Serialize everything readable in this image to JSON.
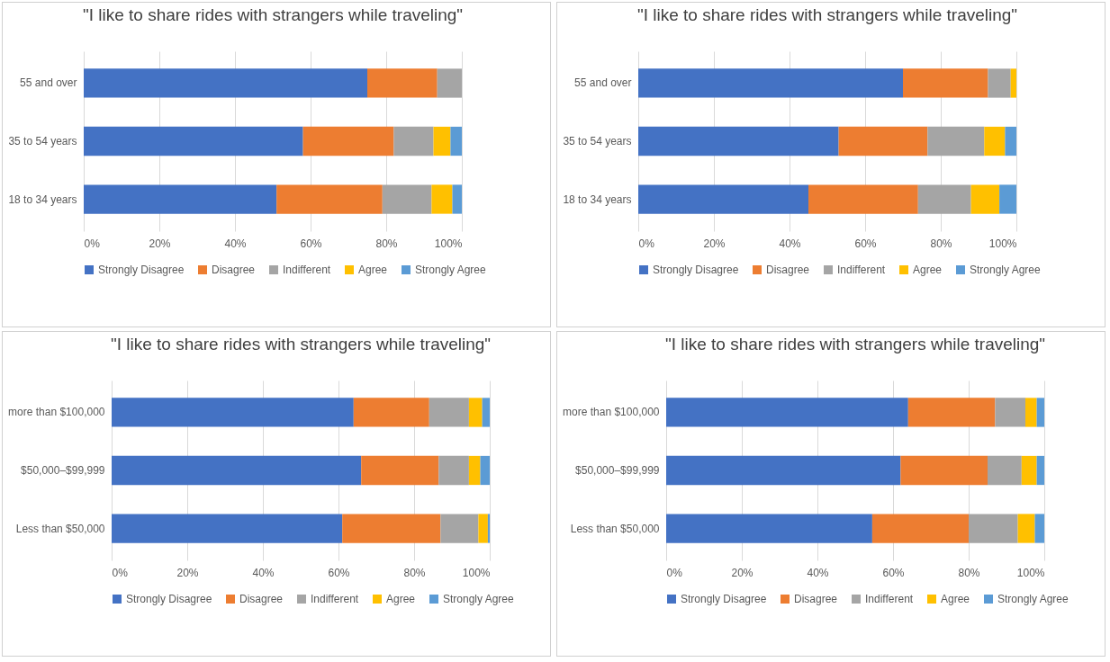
{
  "chart_data": [
    {
      "type": "bar",
      "orientation": "horizontal",
      "stacked": true,
      "title": "\"I like to share rides with strangers while traveling\"",
      "categories": [
        "55 and over",
        "35 to 54 years",
        "18 to 34 years"
      ],
      "series": [
        {
          "name": "Strongly Disagree",
          "color": "#4472c4",
          "values": [
            75,
            58,
            51
          ]
        },
        {
          "name": "Disagree",
          "color": "#ed7d31",
          "values": [
            18.5,
            24,
            28
          ]
        },
        {
          "name": "Indifferent",
          "color": "#a5a5a5",
          "values": [
            6.5,
            10.5,
            13
          ]
        },
        {
          "name": "Agree",
          "color": "#ffc000",
          "values": [
            0,
            4.5,
            5.5
          ]
        },
        {
          "name": "Strongly Agree",
          "color": "#5b9bd5",
          "values": [
            0,
            3,
            2.5
          ]
        }
      ],
      "xlim": [
        0,
        100
      ],
      "xticks": [
        {
          "value": 0,
          "label": "0%"
        },
        {
          "value": 20,
          "label": "20%"
        },
        {
          "value": 40,
          "label": "40%"
        },
        {
          "value": 60,
          "label": "60%"
        },
        {
          "value": 80,
          "label": "80%"
        },
        {
          "value": 100,
          "label": "100%"
        }
      ],
      "grid": "x",
      "legend": "bottom"
    },
    {
      "type": "bar",
      "orientation": "horizontal",
      "stacked": true,
      "title": "\"I like to share rides with strangers while traveling\"",
      "categories": [
        "55 and over",
        "35 to 54 years",
        "18 to 34 years"
      ],
      "series": [
        {
          "name": "Strongly Disagree",
          "color": "#4472c4",
          "values": [
            70,
            53,
            45
          ]
        },
        {
          "name": "Disagree",
          "color": "#ed7d31",
          "values": [
            22.5,
            23.5,
            29
          ]
        },
        {
          "name": "Indifferent",
          "color": "#a5a5a5",
          "values": [
            6,
            15,
            14
          ]
        },
        {
          "name": "Agree",
          "color": "#ffc000",
          "values": [
            1.5,
            5.5,
            7.5
          ]
        },
        {
          "name": "Strongly Agree",
          "color": "#5b9bd5",
          "values": [
            0,
            3,
            4.5
          ]
        }
      ],
      "xlim": [
        0,
        100
      ],
      "xticks": [
        {
          "value": 0,
          "label": "0%"
        },
        {
          "value": 20,
          "label": "20%"
        },
        {
          "value": 40,
          "label": "40%"
        },
        {
          "value": 60,
          "label": "60%"
        },
        {
          "value": 80,
          "label": "80%"
        },
        {
          "value": 100,
          "label": "100%"
        }
      ],
      "grid": "x",
      "legend": "bottom"
    },
    {
      "type": "bar",
      "orientation": "horizontal",
      "stacked": true,
      "title": "\"I like to share rides with strangers while traveling\"",
      "categories": [
        "more than $100,000",
        "$50,000–$99,999",
        "Less than $50,000"
      ],
      "series": [
        {
          "name": "Strongly Disagree",
          "color": "#4472c4",
          "values": [
            64,
            66,
            61
          ]
        },
        {
          "name": "Disagree",
          "color": "#ed7d31",
          "values": [
            20,
            20.5,
            26
          ]
        },
        {
          "name": "Indifferent",
          "color": "#a5a5a5",
          "values": [
            10.5,
            8,
            10
          ]
        },
        {
          "name": "Agree",
          "color": "#ffc000",
          "values": [
            3.5,
            3,
            2.5
          ]
        },
        {
          "name": "Strongly Agree",
          "color": "#5b9bd5",
          "values": [
            2,
            2.5,
            0.5
          ]
        }
      ],
      "xlim": [
        0,
        100
      ],
      "xticks": [
        {
          "value": 0,
          "label": "0%"
        },
        {
          "value": 20,
          "label": "20%"
        },
        {
          "value": 40,
          "label": "40%"
        },
        {
          "value": 60,
          "label": "60%"
        },
        {
          "value": 80,
          "label": "80%"
        },
        {
          "value": 100,
          "label": "100%"
        }
      ],
      "grid": "x",
      "legend": "bottom"
    },
    {
      "type": "bar",
      "orientation": "horizontal",
      "stacked": true,
      "title": "\"I like to share rides with strangers while traveling\"",
      "categories": [
        "more than $100,000",
        "$50,000–$99,999",
        "Less than $50,000"
      ],
      "series": [
        {
          "name": "Strongly Disagree",
          "color": "#4472c4",
          "values": [
            64,
            62,
            54.5
          ]
        },
        {
          "name": "Disagree",
          "color": "#ed7d31",
          "values": [
            23,
            23,
            25.5
          ]
        },
        {
          "name": "Indifferent",
          "color": "#a5a5a5",
          "values": [
            8,
            9,
            13
          ]
        },
        {
          "name": "Agree",
          "color": "#ffc000",
          "values": [
            3,
            4,
            4.5
          ]
        },
        {
          "name": "Strongly Agree",
          "color": "#5b9bd5",
          "values": [
            2,
            2,
            2.5
          ]
        }
      ],
      "xlim": [
        0,
        100
      ],
      "xticks": [
        {
          "value": 0,
          "label": "0%"
        },
        {
          "value": 20,
          "label": "20%"
        },
        {
          "value": 40,
          "label": "40%"
        },
        {
          "value": 60,
          "label": "60%"
        },
        {
          "value": 80,
          "label": "80%"
        },
        {
          "value": 100,
          "label": "100%"
        }
      ],
      "grid": "x",
      "legend": "bottom"
    }
  ]
}
